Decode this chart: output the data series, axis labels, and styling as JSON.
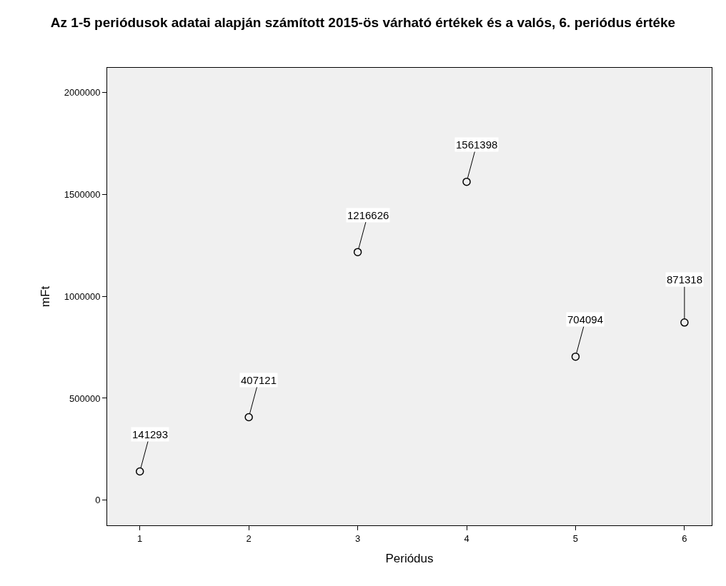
{
  "chart_data": {
    "type": "scatter",
    "title": "Az 1-5 periódusok adatai alapján számított 2015-ös várható értékek és a valós, 6. periódus értéke",
    "xlabel": "Periódus",
    "ylabel": "mFt",
    "x": [
      1,
      2,
      3,
      4,
      5,
      6
    ],
    "values": [
      141293,
      407121,
      1216626,
      1561398,
      704094,
      871318
    ],
    "color": "#000000",
    "marker": "circle",
    "data_labels": true,
    "xlim": [
      0.7,
      6.25
    ],
    "xticks": [
      1,
      2,
      3,
      4,
      5,
      6
    ],
    "ylim": [
      -123000,
      2120000
    ],
    "yticks": [
      0,
      500000,
      1000000,
      1500000,
      2000000
    ],
    "grid": false,
    "legend": false
  }
}
